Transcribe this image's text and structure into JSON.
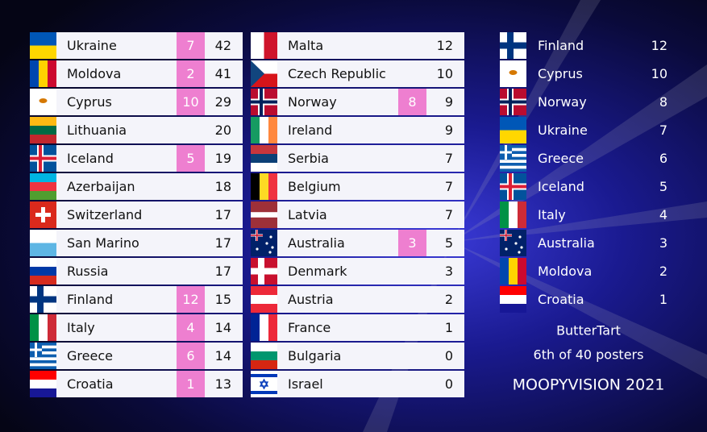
{
  "left_board": {
    "rows": [
      {
        "country": "Ukraine",
        "points": 7,
        "total": 42
      },
      {
        "country": "Moldova",
        "points": 2,
        "total": 41
      },
      {
        "country": "Cyprus",
        "points": 10,
        "total": 29
      },
      {
        "country": "Lithuania",
        "points": null,
        "total": 20
      },
      {
        "country": "Iceland",
        "points": 5,
        "total": 19
      },
      {
        "country": "Azerbaijan",
        "points": null,
        "total": 18
      },
      {
        "country": "Switzerland",
        "points": null,
        "total": 17
      },
      {
        "country": "San Marino",
        "points": null,
        "total": 17
      },
      {
        "country": "Russia",
        "points": null,
        "total": 17
      },
      {
        "country": "Finland",
        "points": 12,
        "total": 15
      },
      {
        "country": "Italy",
        "points": 4,
        "total": 14
      },
      {
        "country": "Greece",
        "points": 6,
        "total": 14
      },
      {
        "country": "Croatia",
        "points": 1,
        "total": 13
      }
    ]
  },
  "middle_board": {
    "rows": [
      {
        "country": "Malta",
        "points": null,
        "total": 12
      },
      {
        "country": "Czech Republic",
        "points": null,
        "total": 10
      },
      {
        "country": "Norway",
        "points": 8,
        "total": 9
      },
      {
        "country": "Ireland",
        "points": null,
        "total": 9
      },
      {
        "country": "Serbia",
        "points": null,
        "total": 7
      },
      {
        "country": "Belgium",
        "points": null,
        "total": 7
      },
      {
        "country": "Latvia",
        "points": null,
        "total": 7
      },
      {
        "country": "Australia",
        "points": 3,
        "total": 5
      },
      {
        "country": "Denmark",
        "points": null,
        "total": 3
      },
      {
        "country": "Austria",
        "points": null,
        "total": 2
      },
      {
        "country": "France",
        "points": null,
        "total": 1
      },
      {
        "country": "Bulgaria",
        "points": null,
        "total": 0
      },
      {
        "country": "Israel",
        "points": null,
        "total": 0
      }
    ]
  },
  "given_points": {
    "rows": [
      {
        "country": "Finland",
        "points": 12
      },
      {
        "country": "Cyprus",
        "points": 10
      },
      {
        "country": "Norway",
        "points": 8
      },
      {
        "country": "Ukraine",
        "points": 7
      },
      {
        "country": "Greece",
        "points": 6
      },
      {
        "country": "Iceland",
        "points": 5
      },
      {
        "country": "Italy",
        "points": 4
      },
      {
        "country": "Australia",
        "points": 3
      },
      {
        "country": "Moldova",
        "points": 2
      },
      {
        "country": "Croatia",
        "points": 1
      }
    ]
  },
  "footer": {
    "user": "ButterTart",
    "rank": "6th of 40 posters",
    "event": "MOOPYVISION 2021"
  }
}
